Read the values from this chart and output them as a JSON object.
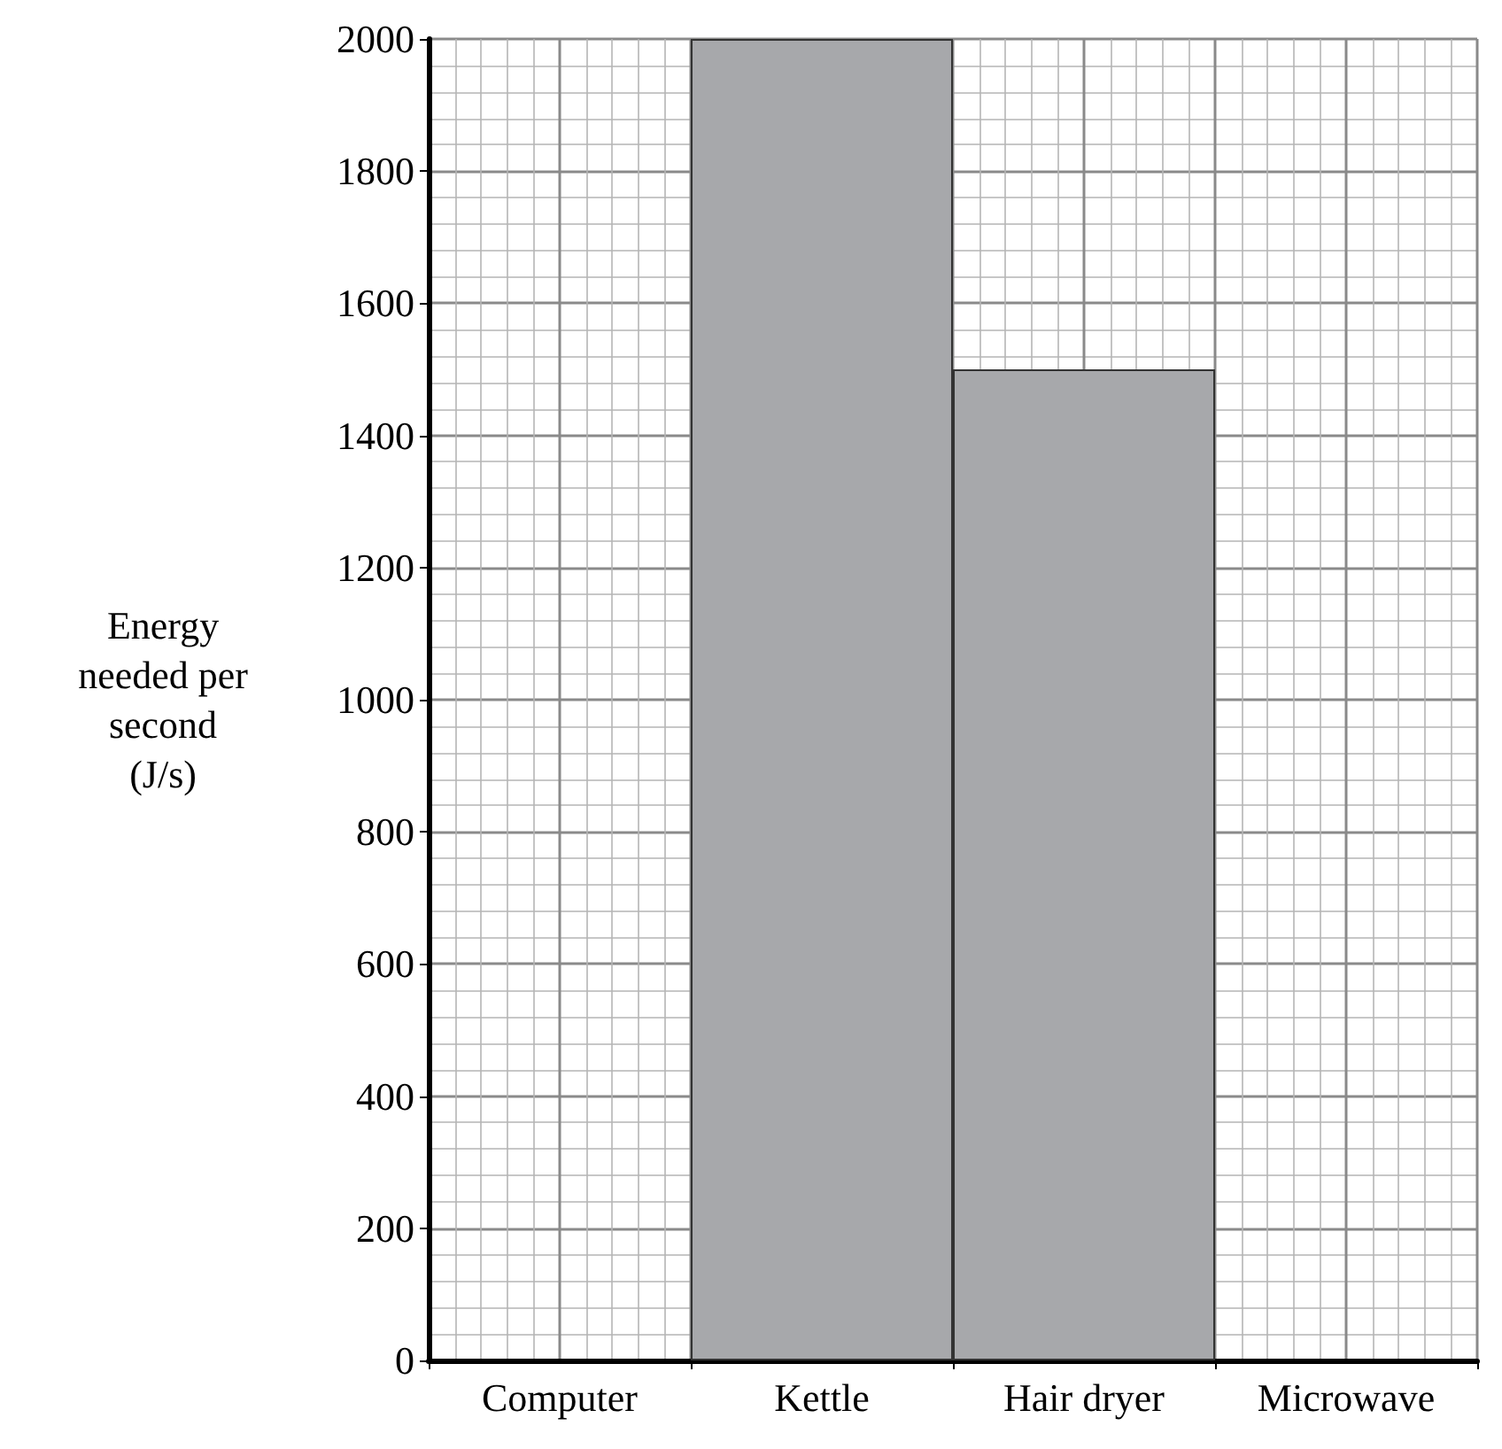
{
  "chart_data": {
    "type": "bar",
    "ylabel": "Energy\nneeded per\nsecond\n(J/s)",
    "categories": [
      "Computer",
      "Kettle",
      "Hair dryer",
      "Microwave"
    ],
    "values": [
      null,
      2000,
      1500,
      null
    ],
    "color": "#a7a8ab",
    "ylim": [
      0,
      2000
    ],
    "yticks": [
      0,
      200,
      400,
      600,
      800,
      1000,
      1200,
      1400,
      1600,
      1800,
      2000
    ],
    "grid": true
  }
}
